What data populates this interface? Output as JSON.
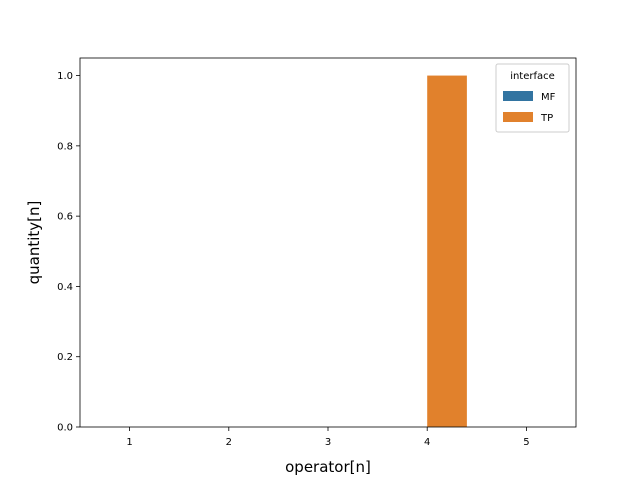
{
  "chart_data": {
    "type": "bar",
    "xlabel": "operator[n]",
    "ylabel": "quantity[n]",
    "categories": [
      "1",
      "2",
      "3",
      "4",
      "5"
    ],
    "ylim": [
      0,
      1.05
    ],
    "yticks": [
      0.0,
      0.2,
      0.4,
      0.6,
      0.8,
      1.0
    ],
    "ytick_labels": [
      "0.0",
      "0.2",
      "0.4",
      "0.6",
      "0.8",
      "1.0"
    ],
    "legend": {
      "title": "interface",
      "placement": "top-right"
    },
    "series": [
      {
        "name": "MF",
        "color": "#3274a1",
        "values": [
          0,
          0,
          0,
          0,
          0
        ]
      },
      {
        "name": "TP",
        "color": "#e1812c",
        "values": [
          0,
          0,
          0,
          1.0,
          0
        ]
      }
    ],
    "grid": false
  }
}
